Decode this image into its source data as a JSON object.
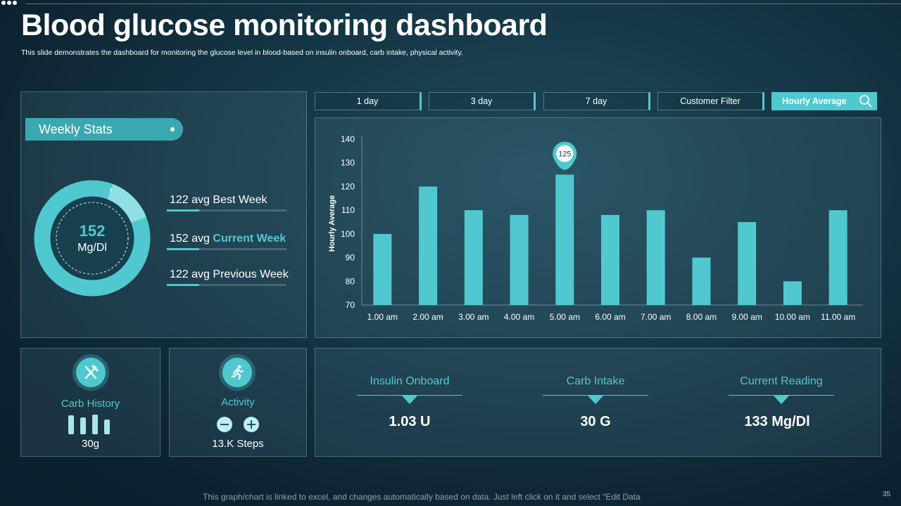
{
  "header": {
    "title": "Blood glucose monitoring dashboard",
    "subtitle": "This slide demonstrates the dashboard for monitoring the glucose level in blood-based on insulin onboard, carb intake, physical activity."
  },
  "weekly_stats": {
    "heading": "Weekly Stats",
    "donut_value": "152",
    "donut_unit": "Mg/Dl",
    "rows": [
      {
        "prefix": "122 avg",
        "label": "Best Week"
      },
      {
        "prefix": "152 avg",
        "label": "Current Week"
      },
      {
        "prefix": "122 avg",
        "label": "Previous Week"
      }
    ]
  },
  "filters": {
    "tabs": [
      "1 day",
      "3 day",
      "7 day",
      "Customer Filter",
      "Hourly Average"
    ],
    "active": "Hourly Average"
  },
  "chart_data": {
    "type": "bar",
    "title": "",
    "xlabel": "",
    "ylabel": "Hourly Average",
    "categories": [
      "1.00 am",
      "2.00 am",
      "3.00 am",
      "4.00 am",
      "5.00 am",
      "6.00 am",
      "7.00 am",
      "8.00 am",
      "9.00 am",
      "10.00 am",
      "11.00 am"
    ],
    "values": [
      100,
      120,
      110,
      108,
      125,
      108,
      110,
      90,
      105,
      80,
      110
    ],
    "ylim": [
      70,
      140
    ],
    "yticks": [
      70,
      80,
      90,
      100,
      110,
      120,
      130,
      140
    ],
    "grid": false,
    "annotation": {
      "category": "5.00 am",
      "text": "125"
    },
    "bar_color": "#4fc9cf"
  },
  "carb_history": {
    "label": "Carb History",
    "value": "30g"
  },
  "activity": {
    "label": "Activity",
    "value": "13.K Steps"
  },
  "metrics": [
    {
      "label": "Insulin  Onboard",
      "value": "1.03 U"
    },
    {
      "label": "Carb Intake",
      "value": "30 G"
    },
    {
      "label": "Current  Reading",
      "value": "133 Mg/Dl"
    }
  ],
  "footer": {
    "note": "This graph/chart is linked to excel, and changes automatically based on data. Just left click on it and select “Edit Data",
    "page_number": "35"
  },
  "colors": {
    "accent": "#4fc9cf",
    "pill": "#3aa8b0",
    "background": "#143443"
  }
}
